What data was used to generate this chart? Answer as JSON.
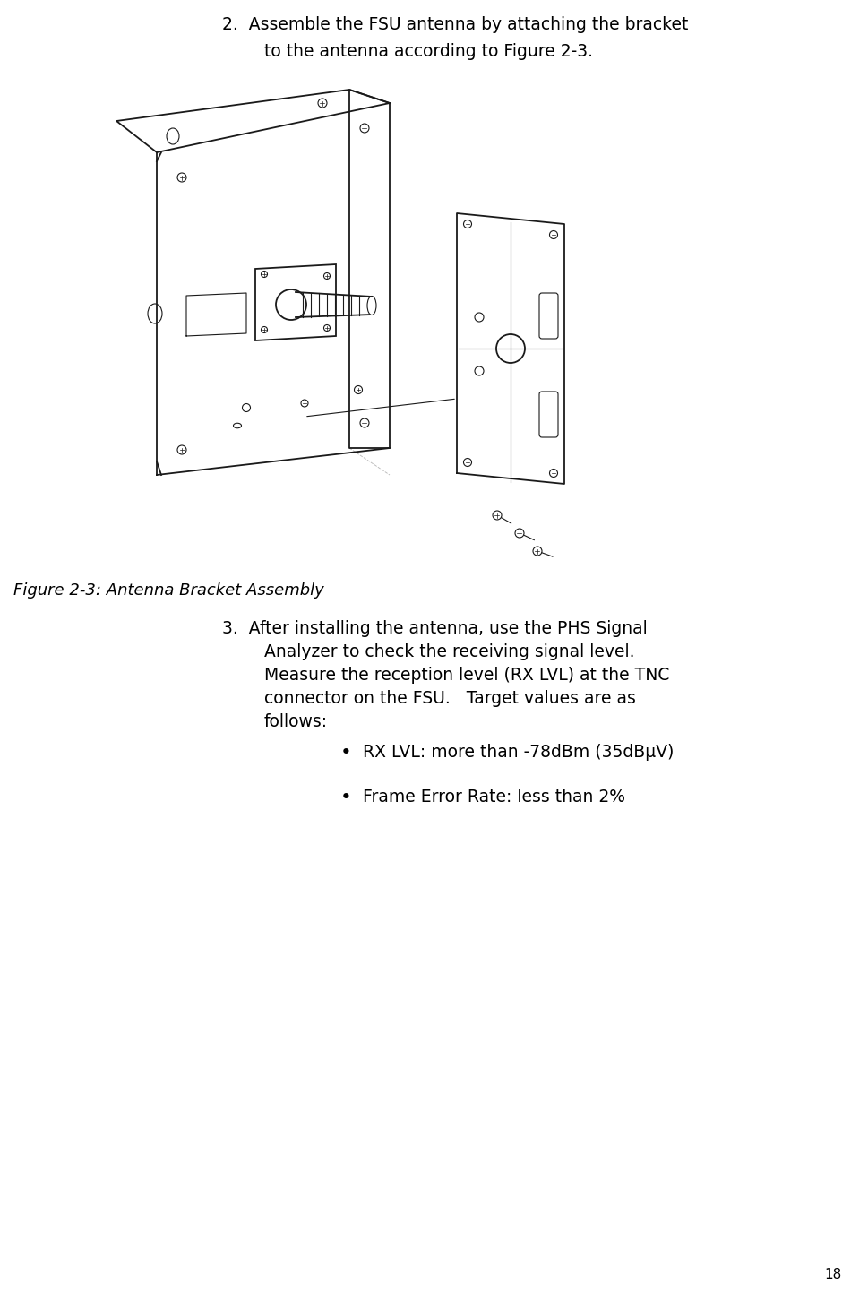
{
  "bg_color": "#ffffff",
  "text_color": "#000000",
  "page_number": "18",
  "figure_caption": "Figure 2-3: Antenna Bracket Assembly",
  "step2_line1": "2.  Assemble the FSU antenna by attaching the bracket",
  "step2_line2": "to the antenna according to Figure 2-3.",
  "step3_lines": [
    "3.  After installing the antenna, use the PHS Signal",
    "Analyzer to check the receiving signal level.",
    "Measure the reception level (RX LVL) at the TNC",
    "connector on the FSU.   Target values are as",
    "follows:"
  ],
  "bullet1": "RX LVL: more than -78dBm (35dBμV)",
  "bullet2": "Frame Error Rate: less than 2%",
  "font_size_body": 13.5,
  "font_size_caption": 13.0,
  "font_size_page": 11
}
